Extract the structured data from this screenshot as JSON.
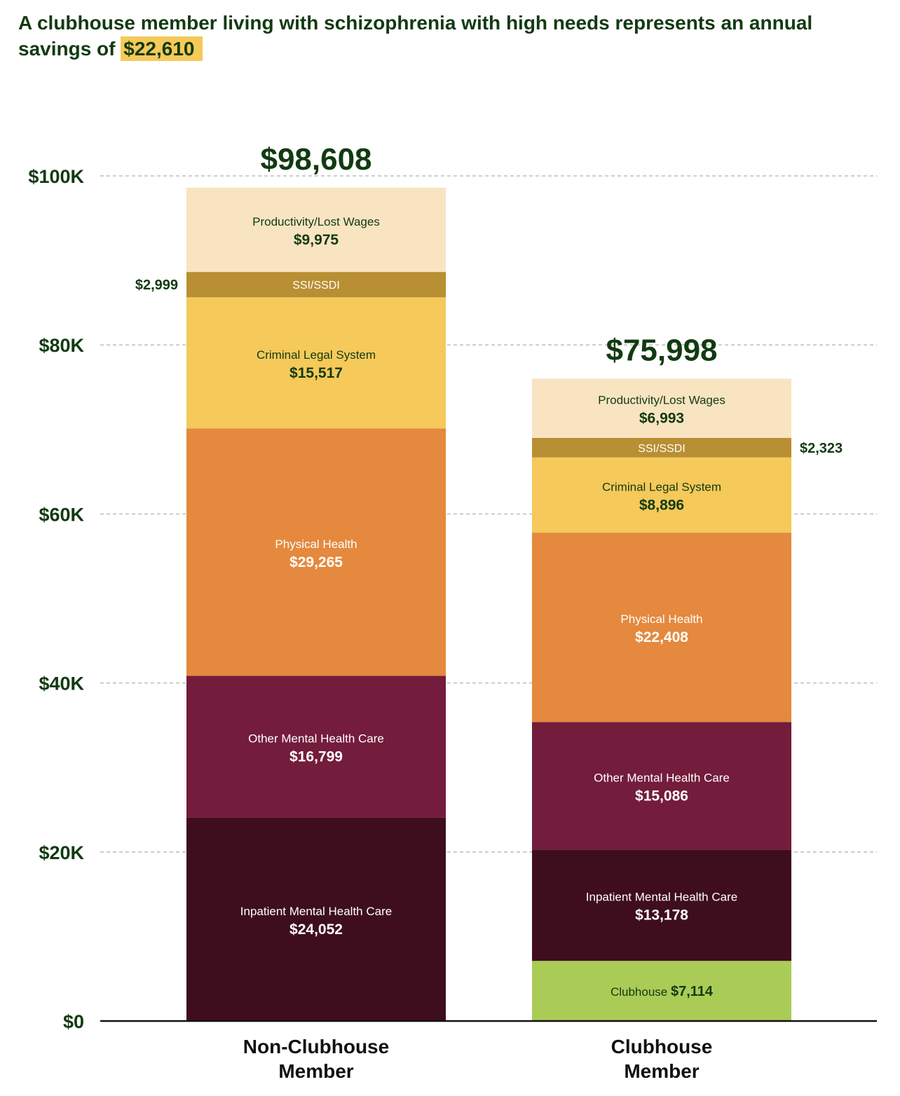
{
  "headline": {
    "text": "A clubhouse member living with schizophrenia with high needs represents an annual savings of",
    "highlight": "$22,610"
  },
  "chart_data": {
    "type": "bar",
    "stacked": true,
    "categories": [
      "Non-Clubhouse Member",
      "Clubhouse Member"
    ],
    "category_lines": [
      [
        "Non-Clubhouse",
        "Member"
      ],
      [
        "Clubhouse",
        "Member"
      ]
    ],
    "totals": [
      "$98,608",
      "$75,998"
    ],
    "yticks": [
      {
        "value": 0,
        "label": "$0"
      },
      {
        "value": 20000,
        "label": "$20K"
      },
      {
        "value": 40000,
        "label": "$40K"
      },
      {
        "value": 60000,
        "label": "$60K"
      },
      {
        "value": 80000,
        "label": "$80K"
      },
      {
        "value": 100000,
        "label": "$100K"
      }
    ],
    "ylim": [
      0,
      100000
    ],
    "grid": true,
    "series": [
      {
        "name": "Clubhouse",
        "color": "#abcb57",
        "label_color": "#123a12",
        "inline": true,
        "values": [
          0,
          7114
        ],
        "labels": [
          "",
          "$7,114"
        ]
      },
      {
        "name": "Inpatient Mental Health Care",
        "color": "#3f0e1e",
        "label_color": "#ffffff",
        "values": [
          24052,
          13178
        ],
        "labels": [
          "$24,052",
          "$13,178"
        ]
      },
      {
        "name": "Other Mental Health Care",
        "color": "#731c3b",
        "label_color": "#ffffff",
        "values": [
          16799,
          15086
        ],
        "labels": [
          "$16,799",
          "$15,086"
        ]
      },
      {
        "name": "Physical Health",
        "color": "#e4893d",
        "label_color": "#ffffff",
        "values": [
          29265,
          22408
        ],
        "labels": [
          "$29,265",
          "$22,408"
        ]
      },
      {
        "name": "Criminal Legal System",
        "color": "#f5c95a",
        "label_color": "#123a12",
        "values": [
          15517,
          8896
        ],
        "labels": [
          "$15,517",
          "$8,896"
        ]
      },
      {
        "name": "SSI/SSDI",
        "color": "#b98f33",
        "label_color": "#ffffff",
        "outside": true,
        "values": [
          2999,
          2323
        ],
        "labels": [
          "$2,999",
          "$2,323"
        ],
        "outside_side": [
          "left",
          "right"
        ]
      },
      {
        "name": "Productivity/Lost Wages",
        "color": "#f9e4c2",
        "label_color": "#123a12",
        "values": [
          9975,
          6993
        ],
        "labels": [
          "$9,975",
          "$6,993"
        ]
      }
    ]
  }
}
